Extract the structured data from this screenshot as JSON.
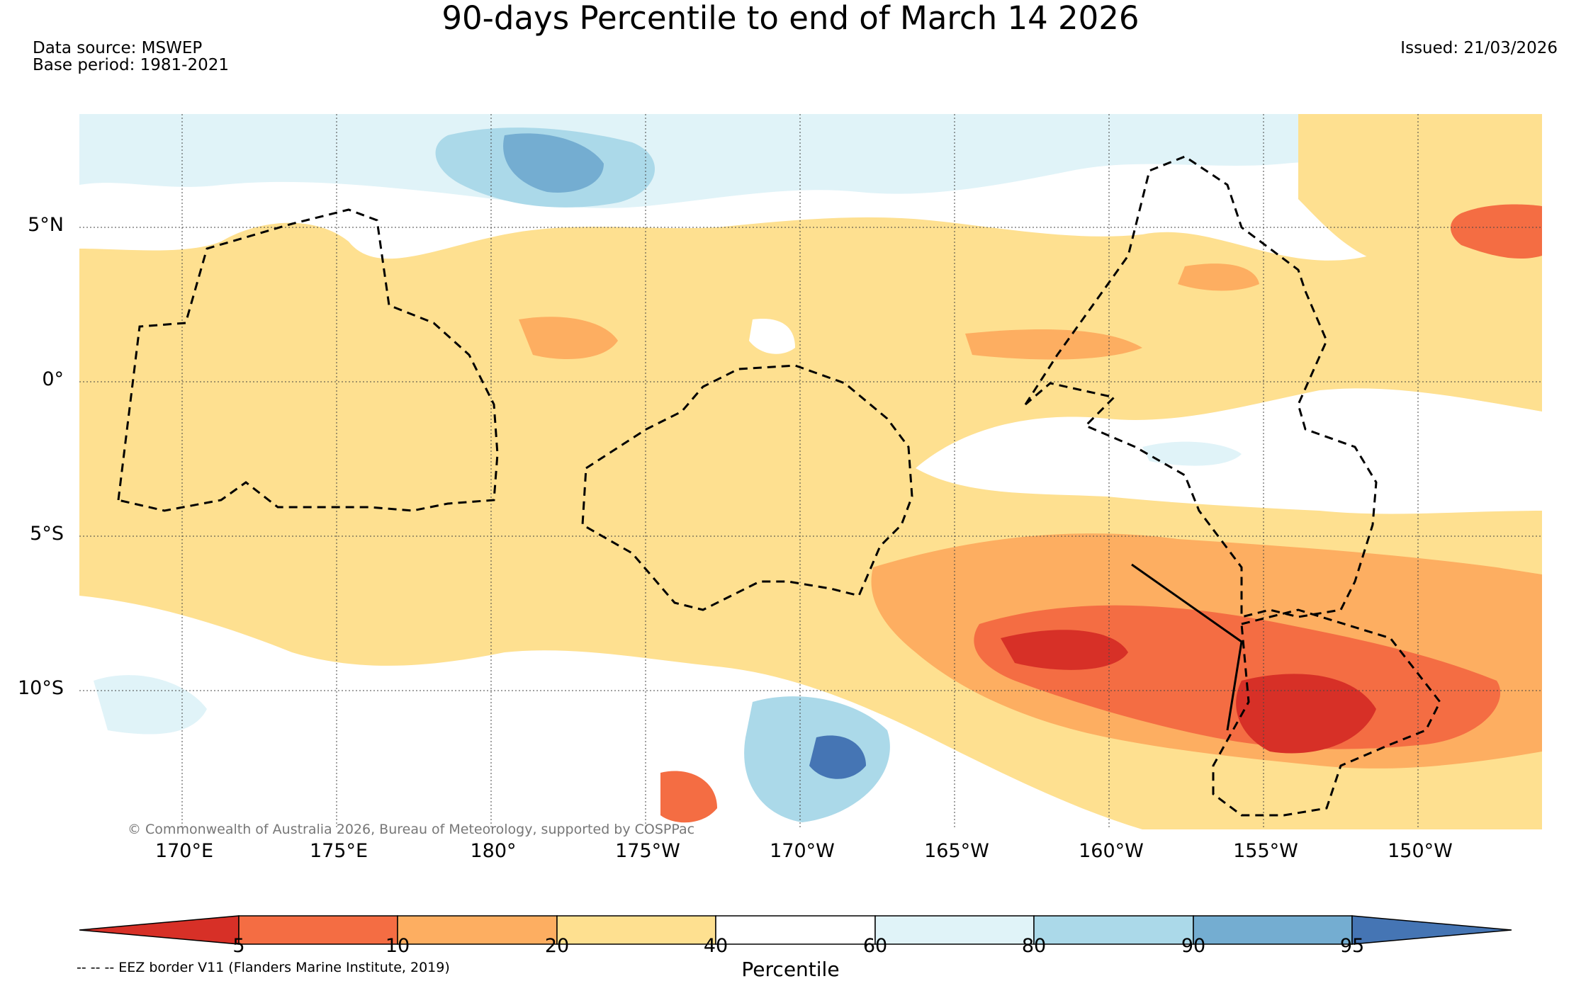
{
  "title": "90-days Percentile to end of March 14 2026",
  "data_source": "Data source: MSWEP",
  "base_period": "Base period: 1981-2021",
  "issued": "Issued: 21/03/2026",
  "copyright": "© Commonwealth of Australia 2026, Bureau of Meteorology, supported by COSPPac",
  "lat_labels": [
    "5°N",
    "0°",
    "5°S",
    "10°S"
  ],
  "lon_labels": [
    "170°E",
    "175°E",
    "180°",
    "175°W",
    "170°W",
    "165°W",
    "160°W",
    "155°W",
    "150°W"
  ],
  "colorbar": {
    "label": "Percentile",
    "ticks": [
      "5",
      "10",
      "20",
      "40",
      "60",
      "80",
      "90",
      "95"
    ],
    "colors": [
      "#d73027",
      "#f46d43",
      "#fdae61",
      "#fee090",
      "#ffffff",
      "#e0f3f8",
      "#abd9e9",
      "#74add1",
      "#4575b4"
    ]
  },
  "legend_note": "-- -- -- EEZ border V11 (Flanders Marine Institute, 2019)"
}
